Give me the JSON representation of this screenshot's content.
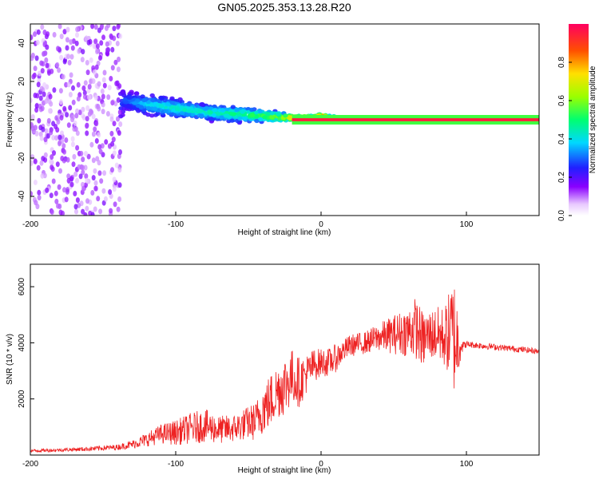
{
  "title": "GN05.2025.353.13.28.R20",
  "colors": {
    "snr_line": "#ee2222",
    "axis": "#000000",
    "background": "#ffffff"
  },
  "chart_data": [
    {
      "type": "heatmap",
      "name": "spectrogram",
      "xlabel": "Height of straight line (km)",
      "ylabel": "Frequency (Hz)",
      "xlim": [
        -200,
        150
      ],
      "ylim": [
        -50,
        50
      ],
      "xticks": [
        "-200",
        "-100",
        "0",
        "100"
      ],
      "yticks": [
        "-40",
        "-20",
        "0",
        "20",
        "40"
      ],
      "grid": false,
      "colorbar": {
        "label": "Normalized spectral amplitude",
        "range": [
          0,
          1
        ],
        "ticks": [
          "0.0",
          "0.2",
          "0.4",
          "0.6",
          "0.8"
        ]
      },
      "profile": {
        "heights": [
          -200,
          -175,
          -150,
          -135,
          -120,
          -100,
          -80,
          -60,
          -40,
          -20,
          -5,
          0,
          5,
          20,
          40,
          60,
          80,
          95,
          110,
          130,
          150
        ],
        "center_hz": [
          0,
          0,
          0,
          10,
          8,
          6,
          4,
          3,
          2,
          1,
          1,
          2,
          1,
          0,
          0,
          0,
          0,
          0,
          0,
          0,
          0
        ],
        "spread_hz": [
          50,
          50,
          50,
          7,
          7,
          6,
          5,
          5,
          4,
          2,
          1.5,
          1.5,
          1.5,
          1.5,
          1.5,
          1.5,
          1.5,
          1.5,
          1.5,
          1.5,
          1.5
        ],
        "peak_amplitude": [
          0.12,
          0.12,
          0.12,
          0.3,
          0.4,
          0.45,
          0.45,
          0.5,
          0.55,
          0.75,
          0.85,
          0.85,
          0.85,
          0.9,
          0.9,
          0.9,
          0.9,
          0.9,
          1.0,
          1.0,
          1.0
        ]
      }
    },
    {
      "type": "line",
      "name": "snr",
      "xlabel": "Height of straight line (km)",
      "ylabel": "SNR (10 * v/v)",
      "xlim": [
        -200,
        150
      ],
      "ylim": [
        0,
        6800
      ],
      "xticks": [
        "-200",
        "-100",
        "0",
        "100"
      ],
      "yticks": [
        "2000",
        "4000",
        "6000"
      ],
      "series": [
        {
          "name": "SNR",
          "x": [
            -200,
            -180,
            -160,
            -140,
            -130,
            -120,
            -110,
            -100,
            -90,
            -80,
            -70,
            -60,
            -50,
            -45,
            -40,
            -35,
            -30,
            -25,
            -20,
            -15,
            -10,
            -5,
            0,
            5,
            10,
            15,
            20,
            30,
            40,
            50,
            60,
            65,
            70,
            75,
            80,
            85,
            90,
            92,
            94,
            96,
            98,
            100,
            110,
            120,
            130,
            140,
            150
          ],
          "y": [
            150,
            180,
            220,
            280,
            380,
            550,
            750,
            800,
            950,
            1050,
            900,
            950,
            1150,
            1200,
            1650,
            1900,
            2300,
            2500,
            2800,
            2600,
            2900,
            3200,
            3300,
            3300,
            3450,
            3700,
            3900,
            4000,
            4200,
            4300,
            4400,
            4550,
            4100,
            4300,
            4300,
            4200,
            4400,
            4200,
            4000,
            3950,
            3900,
            3950,
            3900,
            3850,
            3800,
            3750,
            3700
          ],
          "fluctuation": [
            60,
            60,
            80,
            100,
            150,
            250,
            350,
            450,
            550,
            600,
            500,
            500,
            600,
            700,
            900,
            1000,
            1000,
            1100,
            1000,
            900,
            700,
            600,
            500,
            500,
            500,
            400,
            400,
            400,
            500,
            700,
            900,
            1100,
            1000,
            900,
            1000,
            1100,
            1800,
            2200,
            1500,
            500,
            150,
            120,
            120,
            110,
            110,
            110,
            100
          ]
        }
      ]
    }
  ]
}
